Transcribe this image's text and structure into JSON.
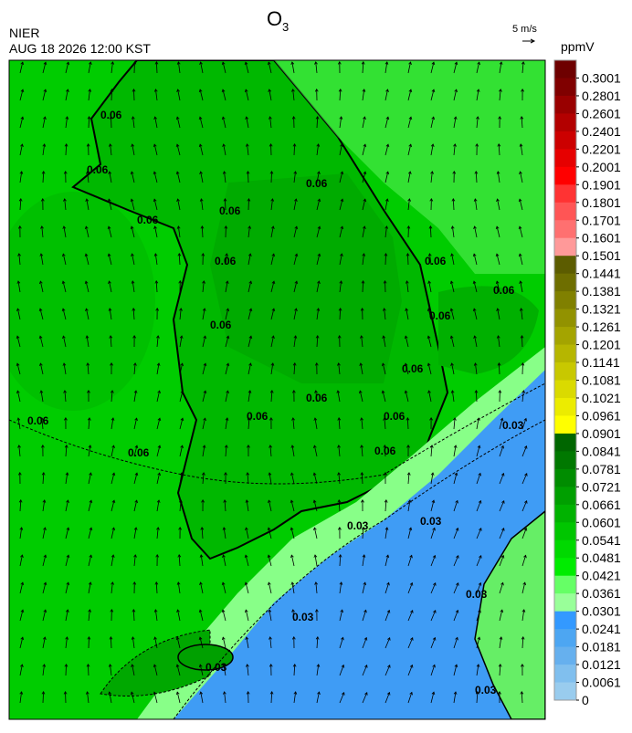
{
  "header": {
    "title": "O",
    "title_subscript": "3",
    "agency": "NIER",
    "datetime": "AUG 18 2026 12:00 KST",
    "wind_scale": "5 m/s"
  },
  "colorbar": {
    "unit": "ppmV",
    "ticks": [
      0.3001,
      0.2801,
      0.2601,
      0.2401,
      0.2201,
      0.2001,
      0.1901,
      0.1801,
      0.1701,
      0.1601,
      0.1501,
      0.1441,
      0.1381,
      0.1321,
      0.1261,
      0.1201,
      0.1141,
      0.1081,
      0.1021,
      0.0961,
      0.0901,
      0.0841,
      0.0781,
      0.0721,
      0.0661,
      0.0601,
      0.0541,
      0.0481,
      0.0421,
      0.0361,
      0.0301,
      0.0241,
      0.0181,
      0.0121,
      0.0061,
      0
    ],
    "colors": [
      "#6e0000",
      "#800000",
      "#990000",
      "#b30000",
      "#cc0000",
      "#e60000",
      "#ff0000",
      "#ff3333",
      "#ff5555",
      "#ff7070",
      "#ff9999",
      "#5c5c00",
      "#6e6e00",
      "#808000",
      "#929200",
      "#a4a400",
      "#b6b600",
      "#c8c800",
      "#dada00",
      "#ecec00",
      "#ffff00",
      "#006600",
      "#007800",
      "#008c00",
      "#009f00",
      "#00b200",
      "#00c600",
      "#00d900",
      "#00ec00",
      "#66ff66",
      "#99ff99",
      "#3399ff",
      "#4da6f2",
      "#66b0ee",
      "#80bfee",
      "#99ccee"
    ]
  },
  "contour_labels": [
    "0.06",
    "0.06",
    "0.06",
    "0.06",
    "0.06",
    "0.06",
    "0.06",
    "0.06",
    "0.06",
    "0.06",
    "0.06",
    "0.06",
    "0.06",
    "0.06",
    "0.06",
    "0.06",
    "0.06",
    "0.03",
    "0.03",
    "0.03",
    "0.03",
    "0.03",
    "0.03",
    "0.03"
  ]
}
